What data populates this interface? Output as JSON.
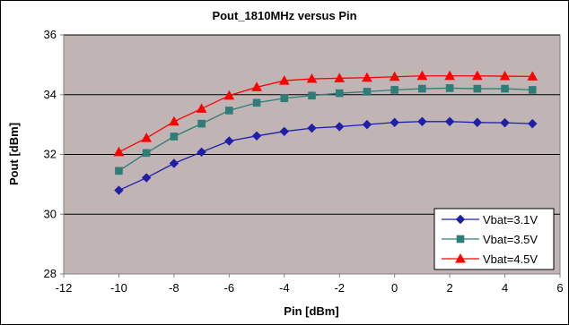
{
  "chart_data": {
    "type": "line",
    "title": "Pout_1810MHz versus Pin",
    "xlabel": "Pin [dBm]",
    "ylabel": "Pout [dBm]",
    "xlim": [
      -12,
      6
    ],
    "ylim": [
      28,
      36
    ],
    "x_ticks": [
      "-12",
      "-10",
      "-8",
      "-6",
      "-4",
      "-2",
      "0",
      "2",
      "4",
      "6"
    ],
    "y_ticks": [
      "28",
      "30",
      "32",
      "34",
      "36"
    ],
    "grid": "horizontal",
    "legend_position": "bottom-right",
    "plot_background": "#c0b4b4",
    "x": [
      -10,
      -9,
      -8,
      -7,
      -6,
      -5,
      -4,
      -3,
      -2,
      -1,
      0,
      1,
      2,
      3,
      4,
      5
    ],
    "series": [
      {
        "name": "Vbat=3.1V",
        "color": "#1f1fa8",
        "marker": "diamond",
        "values": [
          30.8,
          31.22,
          31.7,
          32.08,
          32.45,
          32.62,
          32.77,
          32.88,
          32.93,
          33.0,
          33.07,
          33.1,
          33.1,
          33.07,
          33.06,
          33.03
        ]
      },
      {
        "name": "Vbat=3.5V",
        "color": "#2e7d78",
        "marker": "square",
        "values": [
          31.45,
          32.05,
          32.6,
          33.03,
          33.47,
          33.73,
          33.88,
          33.97,
          34.05,
          34.1,
          34.16,
          34.2,
          34.22,
          34.2,
          34.2,
          34.16
        ]
      },
      {
        "name": "Vbat=4.5V",
        "color": "#ff0000",
        "marker": "triangle",
        "values": [
          32.08,
          32.55,
          33.1,
          33.53,
          33.97,
          34.25,
          34.47,
          34.53,
          34.55,
          34.57,
          34.6,
          34.63,
          34.63,
          34.63,
          34.62,
          34.61
        ]
      }
    ]
  }
}
